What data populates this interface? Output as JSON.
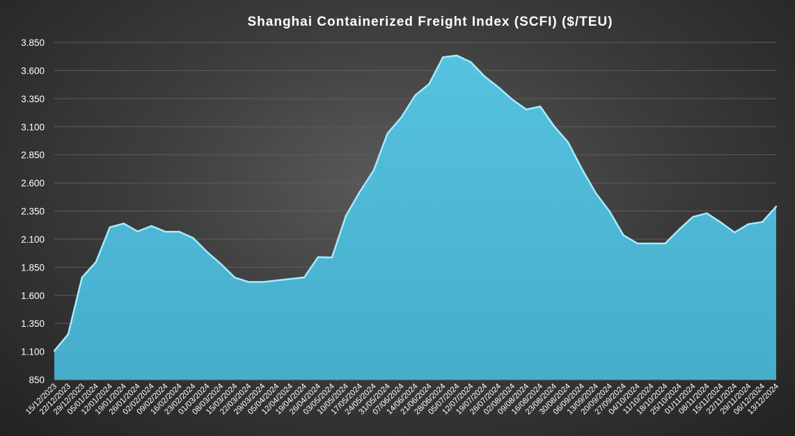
{
  "chart_data": {
    "type": "area",
    "title": "Shanghai  Containerized  Freight  Index  (SCFI) ($/TEU)",
    "xlabel": "",
    "ylabel": "",
    "ylim": [
      850,
      3850
    ],
    "yticks": [
      "850",
      "1.100",
      "1.350",
      "1.600",
      "1.850",
      "2.100",
      "2.350",
      "2.600",
      "2.850",
      "3.100",
      "3.350",
      "3.600",
      "3.850"
    ],
    "grid": true,
    "legend": "none",
    "colors": {
      "area": "#4db8d6",
      "edge": "#a6ecff",
      "background": "#3f3f3f"
    },
    "x": [
      "15/12/2023",
      "22/12/2023",
      "29/12/2023",
      "05/01/2024",
      "12/01/2024",
      "19/01/2024",
      "26/01/2024",
      "02/02/2024",
      "09/02/2024",
      "16/02/2024",
      "23/02/2024",
      "01/03/2024",
      "08/03/2024",
      "15/03/2024",
      "22/03/2024",
      "29/03/2024",
      "05/04/2024",
      "12/04/2024",
      "19/04/2024",
      "26/04/2024",
      "03/05/2024",
      "10/05/2024",
      "17/05/2024",
      "24/05/2024",
      "31/05/2024",
      "07/06/2024",
      "14/06/2024",
      "21/06/2024",
      "28/06/2024",
      "05/07/2024",
      "12/07/2024",
      "19/07/2024",
      "26/07/2024",
      "02/08/2024",
      "09/08/2024",
      "16/08/2024",
      "23/08/2024",
      "30/08/2024",
      "06/09/2024",
      "13/09/2024",
      "20/09/2024",
      "27/09/2024",
      "04/10/2024",
      "11/10/2024",
      "18/10/2024",
      "25/10/2024",
      "01/11/2024",
      "08/11/2024",
      "15/11/2024",
      "22/11/2024",
      "29/11/2024",
      "06/12/2024",
      "13/12/2024"
    ],
    "series": [
      {
        "values": [
          1106,
          1254,
          1760,
          1896,
          2206,
          2239,
          2169,
          2217,
          2166,
          2166,
          2110,
          1986,
          1879,
          1758,
          1719,
          1719,
          1732,
          1746,
          1760,
          1940,
          1937,
          2306,
          2520,
          2710,
          3040,
          3184,
          3380,
          3480,
          3719,
          3733,
          3675,
          3547,
          3450,
          3341,
          3254,
          3280,
          3105,
          2963,
          2726,
          2510,
          2346,
          2135,
          2062,
          2062,
          2062,
          2185,
          2298,
          2330,
          2250,
          2160,
          2234,
          2253,
          2390
        ]
      }
    ]
  }
}
